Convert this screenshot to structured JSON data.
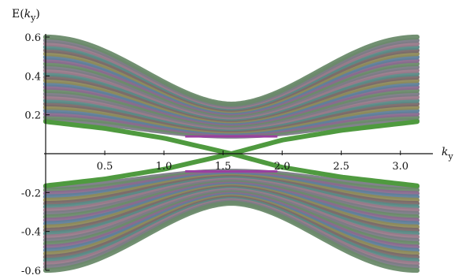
{
  "chart_data": {
    "type": "line",
    "title": "",
    "xlabel": {
      "base": "k",
      "sub": "y"
    },
    "ylabel": {
      "prefix": "E(",
      "base": "k",
      "sub": "y",
      "suffix": ")"
    },
    "xlim": [
      0,
      3.14159
    ],
    "ylim": [
      -0.6,
      0.6
    ],
    "x_ticks": [
      "0.5",
      "1.0",
      "1.5",
      "2.0",
      "2.5",
      "3.0"
    ],
    "x_tick_values": [
      0.5,
      1.0,
      1.5,
      2.0,
      2.5,
      3.0
    ],
    "y_ticks": [
      "0.6",
      "0.4",
      "0.2",
      "-0.2",
      "-0.4",
      "-0.6"
    ],
    "y_tick_values": [
      0.6,
      0.4,
      0.2,
      -0.2,
      -0.4,
      -0.6
    ],
    "grid": false,
    "legend": "none",
    "band_count": 26,
    "bulk_band": {
      "edge_at_ky_0": 0.6,
      "edge_at_ky_pi_over_2": 0.255,
      "inner_at_ky_0": 0.17,
      "inner_at_ky_pi_over_2": 0.09,
      "inner_at_ky_pi": 0.17
    },
    "edge_states": [
      {
        "x": [
          0.0,
          0.5,
          1.0,
          1.5708,
          2.0,
          2.5,
          3.14159
        ],
        "y": [
          0.165,
          0.13,
          0.08,
          0.0,
          -0.07,
          -0.12,
          -0.165
        ]
      },
      {
        "x": [
          0.0,
          0.5,
          1.0,
          1.5708,
          2.0,
          2.5,
          3.14159
        ],
        "y": [
          -0.165,
          -0.13,
          -0.08,
          0.0,
          0.07,
          0.12,
          0.165
        ]
      }
    ],
    "colors": {
      "band_palette": [
        "#7b7b86",
        "#6a8a6a",
        "#8a6a8e",
        "#5f7f9a",
        "#8e8a5a",
        "#7a6a6a",
        "#5a8a86",
        "#9a7a8a"
      ],
      "edge_state": "#4f9a3f",
      "gap_highlight": "#9a3fa0",
      "axis": "#111111"
    }
  }
}
